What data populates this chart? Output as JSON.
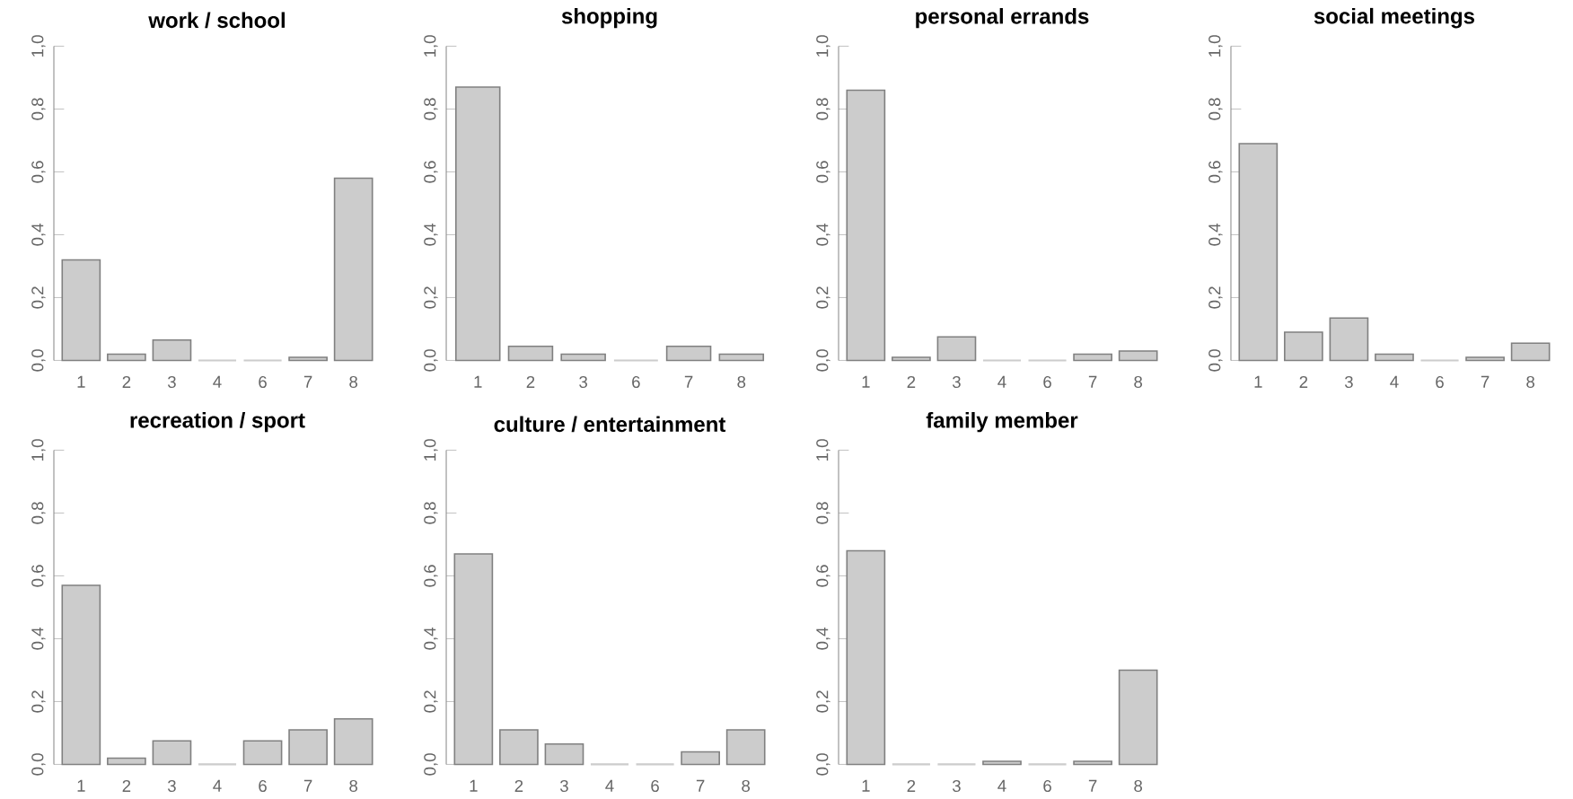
{
  "chart_data": [
    {
      "type": "bar",
      "title": "work / school",
      "categories": [
        "1",
        "2",
        "3",
        "4",
        "6",
        "7",
        "8"
      ],
      "values": [
        0.32,
        0.02,
        0.065,
        0,
        0,
        0.01,
        0.58
      ],
      "color": "#cccccc",
      "ylim": [
        0,
        1
      ],
      "yticks": [
        {
          "value": 0,
          "label": "0,0"
        },
        {
          "value": 0.2,
          "label": "0,2"
        },
        {
          "value": 0.4,
          "label": "0,4"
        },
        {
          "value": 0.6,
          "label": "0,6"
        },
        {
          "value": 0.8,
          "label": "0,8"
        },
        {
          "value": 1,
          "label": "1,0"
        }
      ]
    },
    {
      "type": "bar",
      "title": "shopping",
      "categories": [
        "1",
        "2",
        "3",
        "6",
        "7",
        "8"
      ],
      "values": [
        0.87,
        0.045,
        0.02,
        0,
        0.045,
        0.02
      ],
      "color": "#cccccc",
      "ylim": [
        0,
        1
      ],
      "yticks": [
        {
          "value": 0,
          "label": "0,0"
        },
        {
          "value": 0.2,
          "label": "0,2"
        },
        {
          "value": 0.4,
          "label": "0,4"
        },
        {
          "value": 0.6,
          "label": "0,6"
        },
        {
          "value": 0.8,
          "label": "0,8"
        },
        {
          "value": 1,
          "label": "1,0"
        }
      ]
    },
    {
      "type": "bar",
      "title": "personal errands",
      "categories": [
        "1",
        "2",
        "3",
        "4",
        "6",
        "7",
        "8"
      ],
      "values": [
        0.86,
        0.01,
        0.075,
        0,
        0,
        0.02,
        0.03
      ],
      "color": "#cccccc",
      "ylim": [
        0,
        1
      ],
      "yticks": [
        {
          "value": 0,
          "label": "0,0"
        },
        {
          "value": 0.2,
          "label": "0,2"
        },
        {
          "value": 0.4,
          "label": "0,4"
        },
        {
          "value": 0.6,
          "label": "0,6"
        },
        {
          "value": 0.8,
          "label": "0,8"
        },
        {
          "value": 1,
          "label": "1,0"
        }
      ]
    },
    {
      "type": "bar",
      "title": "social meetings",
      "categories": [
        "1",
        "2",
        "3",
        "4",
        "6",
        "7",
        "8"
      ],
      "values": [
        0.69,
        0.09,
        0.135,
        0.02,
        0,
        0.01,
        0.055
      ],
      "color": "#cccccc",
      "ylim": [
        0,
        1
      ],
      "yticks": [
        {
          "value": 0,
          "label": "0,0"
        },
        {
          "value": 0.2,
          "label": "0,2"
        },
        {
          "value": 0.4,
          "label": "0,4"
        },
        {
          "value": 0.6,
          "label": "0,6"
        },
        {
          "value": 0.8,
          "label": "0,8"
        },
        {
          "value": 1,
          "label": "1,0"
        }
      ]
    },
    {
      "type": "bar",
      "title": "recreation / sport",
      "categories": [
        "1",
        "2",
        "3",
        "4",
        "6",
        "7",
        "8"
      ],
      "values": [
        0.57,
        0.02,
        0.075,
        0,
        0.075,
        0.11,
        0.145
      ],
      "color": "#cccccc",
      "ylim": [
        0,
        1
      ],
      "yticks": [
        {
          "value": 0,
          "label": "0,0"
        },
        {
          "value": 0.2,
          "label": "0,2"
        },
        {
          "value": 0.4,
          "label": "0,4"
        },
        {
          "value": 0.6,
          "label": "0,6"
        },
        {
          "value": 0.8,
          "label": "0,8"
        },
        {
          "value": 1,
          "label": "1,0"
        }
      ]
    },
    {
      "type": "bar",
      "title": "culture / entertainment",
      "categories": [
        "1",
        "2",
        "3",
        "4",
        "6",
        "7",
        "8"
      ],
      "values": [
        0.67,
        0.11,
        0.065,
        0,
        0,
        0.04,
        0.11
      ],
      "color": "#cccccc",
      "ylim": [
        0,
        1
      ],
      "yticks": [
        {
          "value": 0,
          "label": "0,0"
        },
        {
          "value": 0.2,
          "label": "0,2"
        },
        {
          "value": 0.4,
          "label": "0,4"
        },
        {
          "value": 0.6,
          "label": "0,6"
        },
        {
          "value": 0.8,
          "label": "0,8"
        },
        {
          "value": 1,
          "label": "1,0"
        }
      ]
    },
    {
      "type": "bar",
      "title": "family member",
      "categories": [
        "1",
        "2",
        "3",
        "4",
        "6",
        "7",
        "8"
      ],
      "values": [
        0.68,
        0,
        0,
        0.01,
        0,
        0.01,
        0.3
      ],
      "color": "#cccccc",
      "ylim": [
        0,
        1
      ],
      "yticks": [
        {
          "value": 0,
          "label": "0,0"
        },
        {
          "value": 0.2,
          "label": "0,2"
        },
        {
          "value": 0.4,
          "label": "0,4"
        },
        {
          "value": 0.6,
          "label": "0,6"
        },
        {
          "value": 0.8,
          "label": "0,8"
        },
        {
          "value": 1,
          "label": "1,0"
        }
      ]
    }
  ]
}
